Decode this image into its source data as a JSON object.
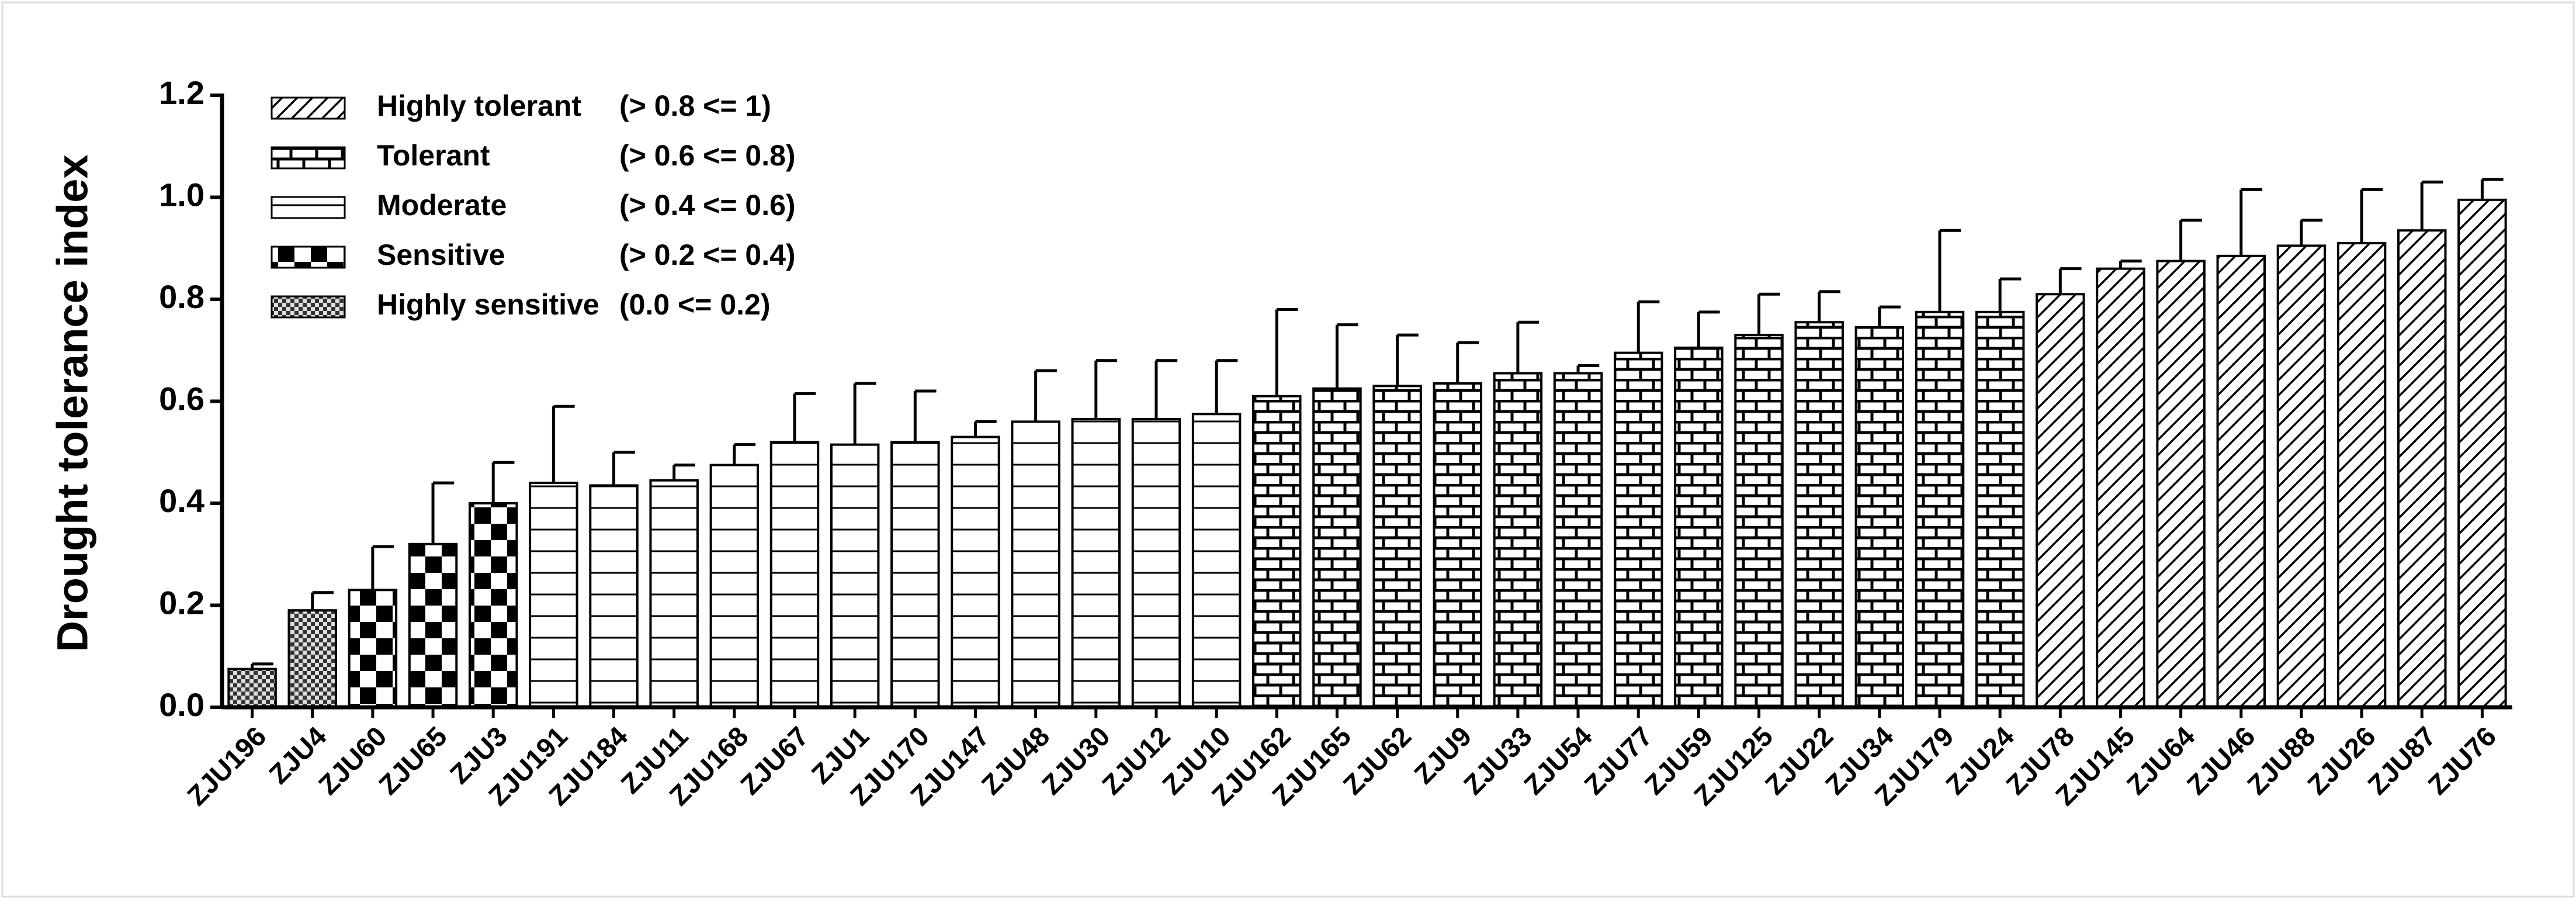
{
  "chart_data": {
    "type": "bar",
    "y_label": "Drought tolerance index",
    "categories": [
      "ZJU196",
      "ZJU4",
      "ZJU60",
      "ZJU65",
      "ZJU3",
      "ZJU191",
      "ZJU184",
      "ZJU11",
      "ZJU168",
      "ZJU67",
      "ZJU1",
      "ZJU170",
      "ZJU147",
      "ZJU48",
      "ZJU30",
      "ZJU12",
      "ZJU10",
      "ZJU162",
      "ZJU165",
      "ZJU62",
      "ZJU9",
      "ZJU33",
      "ZJU54",
      "ZJU77",
      "ZJU59",
      "ZJU125",
      "ZJU22",
      "ZJU34",
      "ZJU179",
      "ZJU24",
      "ZJU78",
      "ZJU145",
      "ZJU64",
      "ZJU46",
      "ZJU88",
      "ZJU26",
      "ZJU87",
      "ZJU76"
    ],
    "series": [
      {
        "name": "Highly tolerant",
        "range": "(> 0.8 <= 1)",
        "pattern": "diagonal",
        "values": [
          null,
          null,
          null,
          null,
          null,
          null,
          null,
          null,
          null,
          null,
          null,
          null,
          null,
          null,
          null,
          null,
          null,
          null,
          null,
          null,
          null,
          null,
          null,
          null,
          null,
          null,
          null,
          null,
          null,
          null,
          0.81,
          0.86,
          0.875,
          0.885,
          0.905,
          0.91,
          0.935,
          0.995
        ],
        "errors": [
          null,
          null,
          null,
          null,
          null,
          null,
          null,
          null,
          null,
          null,
          null,
          null,
          null,
          null,
          null,
          null,
          null,
          null,
          null,
          null,
          null,
          null,
          null,
          null,
          null,
          null,
          null,
          null,
          null,
          null,
          0.05,
          0.015,
          0.08,
          0.13,
          0.05,
          0.105,
          0.095,
          0.04
        ]
      },
      {
        "name": "Tolerant",
        "range": "(> 0.6 <= 0.8)",
        "pattern": "brick",
        "values": [
          null,
          null,
          null,
          null,
          null,
          null,
          null,
          null,
          null,
          null,
          null,
          null,
          null,
          null,
          null,
          null,
          null,
          0.61,
          0.625,
          0.63,
          0.635,
          0.655,
          0.655,
          0.695,
          0.705,
          0.73,
          0.755,
          0.745,
          0.775,
          0.775,
          null,
          null,
          null,
          null,
          null,
          null,
          null,
          null
        ],
        "errors": [
          null,
          null,
          null,
          null,
          null,
          null,
          null,
          null,
          null,
          null,
          null,
          null,
          null,
          null,
          null,
          null,
          null,
          0.17,
          0.125,
          0.1,
          0.08,
          0.1,
          0.015,
          0.1,
          0.07,
          0.08,
          0.06,
          0.04,
          0.16,
          0.065,
          null,
          null,
          null,
          null,
          null,
          null,
          null,
          null
        ]
      },
      {
        "name": "Moderate",
        "range": "(> 0.4 <= 0.6)",
        "pattern": "hlines",
        "values": [
          null,
          null,
          null,
          null,
          null,
          0.44,
          0.435,
          0.445,
          0.475,
          0.52,
          0.515,
          0.52,
          0.53,
          0.56,
          0.565,
          0.565,
          0.575,
          null,
          null,
          null,
          null,
          null,
          null,
          null,
          null,
          null,
          null,
          null,
          null,
          null,
          null,
          null,
          null,
          null,
          null,
          null,
          null,
          null
        ],
        "errors": [
          null,
          null,
          null,
          null,
          null,
          0.15,
          0.065,
          0.03,
          0.04,
          0.095,
          0.12,
          0.1,
          0.03,
          0.1,
          0.115,
          0.115,
          0.105,
          null,
          null,
          null,
          null,
          null,
          null,
          null,
          null,
          null,
          null,
          null,
          null,
          null,
          null,
          null,
          null,
          null,
          null,
          null,
          null,
          null
        ]
      },
      {
        "name": "Sensitive",
        "range": "(> 0.2 <= 0.4)",
        "pattern": "bigcheck",
        "values": [
          null,
          null,
          0.23,
          0.32,
          0.4,
          null,
          null,
          null,
          null,
          null,
          null,
          null,
          null,
          null,
          null,
          null,
          null,
          null,
          null,
          null,
          null,
          null,
          null,
          null,
          null,
          null,
          null,
          null,
          null,
          null,
          null,
          null,
          null,
          null,
          null,
          null,
          null,
          null
        ],
        "errors": [
          null,
          null,
          0.085,
          0.12,
          0.08,
          null,
          null,
          null,
          null,
          null,
          null,
          null,
          null,
          null,
          null,
          null,
          null,
          null,
          null,
          null,
          null,
          null,
          null,
          null,
          null,
          null,
          null,
          null,
          null,
          null,
          null,
          null,
          null,
          null,
          null,
          null,
          null,
          null
        ]
      },
      {
        "name": "Highly sensitive",
        "range": "(0.0 <= 0.2)",
        "pattern": "smallcheck",
        "values": [
          0.075,
          0.19,
          null,
          null,
          null,
          null,
          null,
          null,
          null,
          null,
          null,
          null,
          null,
          null,
          null,
          null,
          null,
          null,
          null,
          null,
          null,
          null,
          null,
          null,
          null,
          null,
          null,
          null,
          null,
          null,
          null,
          null,
          null,
          null,
          null,
          null,
          null,
          null
        ],
        "errors": [
          0.01,
          0.035,
          null,
          null,
          null,
          null,
          null,
          null,
          null,
          null,
          null,
          null,
          null,
          null,
          null,
          null,
          null,
          null,
          null,
          null,
          null,
          null,
          null,
          null,
          null,
          null,
          null,
          null,
          null,
          null,
          null,
          null,
          null,
          null,
          null,
          null,
          null,
          null
        ]
      }
    ],
    "ylim": [
      0,
      1.2
    ],
    "yticks": [
      {
        "value": 0,
        "label": "0.0"
      },
      0.2,
      0.4,
      0.6,
      0.8,
      {
        "value": 1,
        "label": "1.0"
      },
      1.2
    ]
  }
}
